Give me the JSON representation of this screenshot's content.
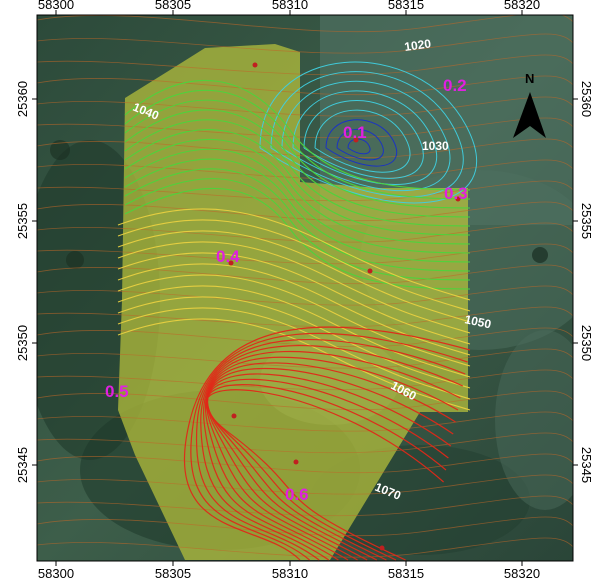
{
  "map": {
    "x_ticks": [
      "58300",
      "58305",
      "58310",
      "58315",
      "58320"
    ],
    "y_ticks": [
      "25360",
      "25355",
      "25350",
      "25345"
    ],
    "north_label": "N",
    "contour_labels": [
      "1020",
      "1030",
      "1040",
      "1050",
      "1060",
      "1070"
    ],
    "sample_labels": [
      "0.1",
      "0.2",
      "0.3",
      "0.4",
      "0.5",
      "0.6"
    ],
    "colors": {
      "frame": "#000000",
      "sample_label": "#e020e0",
      "contour_label": "#ffffff",
      "zone_fill": "#b8c23c",
      "contour_cyan": "#3fd0e0",
      "contour_blue": "#1830c8",
      "contour_green": "#4cd43c",
      "contour_yellow": "#e8d040",
      "contour_red": "#e02818",
      "contour_brown": "#c06828"
    }
  }
}
